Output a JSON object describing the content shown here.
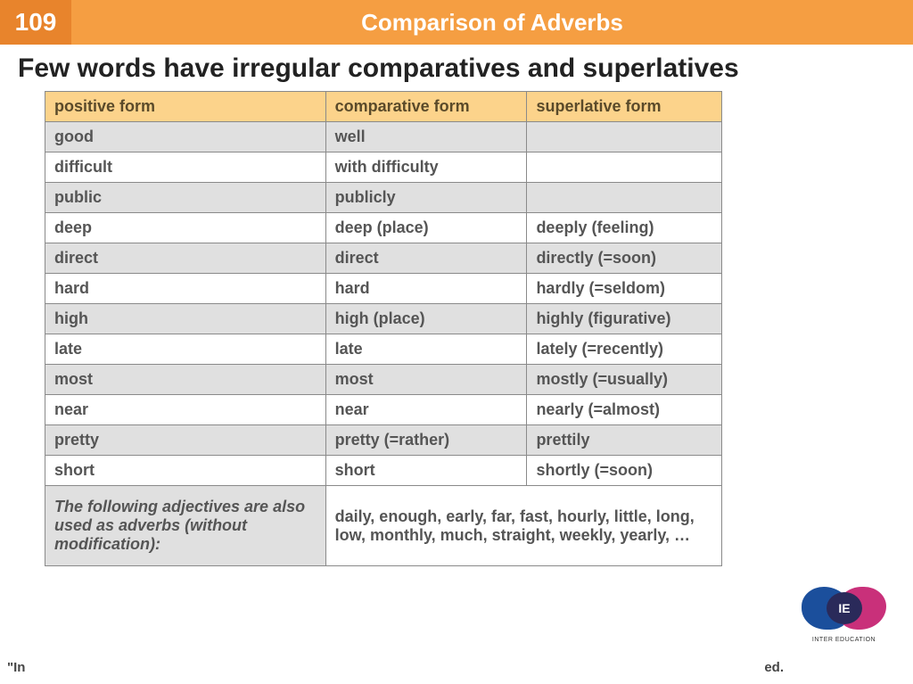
{
  "header": {
    "slide_number": "109",
    "title": "Comparison of Adverbs"
  },
  "subtitle": "Few words have irregular comparatives and superlatives",
  "table": {
    "headers": [
      "positive form",
      "comparative form",
      "superlative form"
    ],
    "rows": [
      [
        "good",
        "well",
        ""
      ],
      [
        "difficult",
        "with difficulty",
        ""
      ],
      [
        "public",
        "publicly",
        ""
      ],
      [
        "deep",
        "deep (place)",
        "deeply (feeling)"
      ],
      [
        "direct",
        "direct",
        "directly (=soon)"
      ],
      [
        "hard",
        "hard",
        "hardly (=seldom)"
      ],
      [
        "high",
        "high (place)",
        "highly (figurative)"
      ],
      [
        "late",
        "late",
        "lately (=recently)"
      ],
      [
        "most",
        "most",
        "mostly (=usually)"
      ],
      [
        "near",
        "near",
        "nearly (=almost)"
      ],
      [
        "pretty",
        "pretty (=rather)",
        "prettily"
      ],
      [
        "short",
        "short",
        "shortly (=soon)"
      ]
    ],
    "footer": {
      "left": "The following adjectives are also used as adverbs (without modification):",
      "right": "daily, enough, early, far, fast, hourly, little, long, low, monthly, much, straight, weekly, yearly, …"
    }
  },
  "bottom_text_left": "\"In",
  "bottom_text_right": "ed.",
  "logo": {
    "initials": "IE",
    "caption": "INTER EDUCATION"
  },
  "colors": {
    "header_dark": "#e8842c",
    "header_light": "#f59e42",
    "th_bg": "#fcd38b",
    "row_odd": "#e0e0e0",
    "row_even": "#ffffff",
    "border": "#8a8a8a"
  }
}
